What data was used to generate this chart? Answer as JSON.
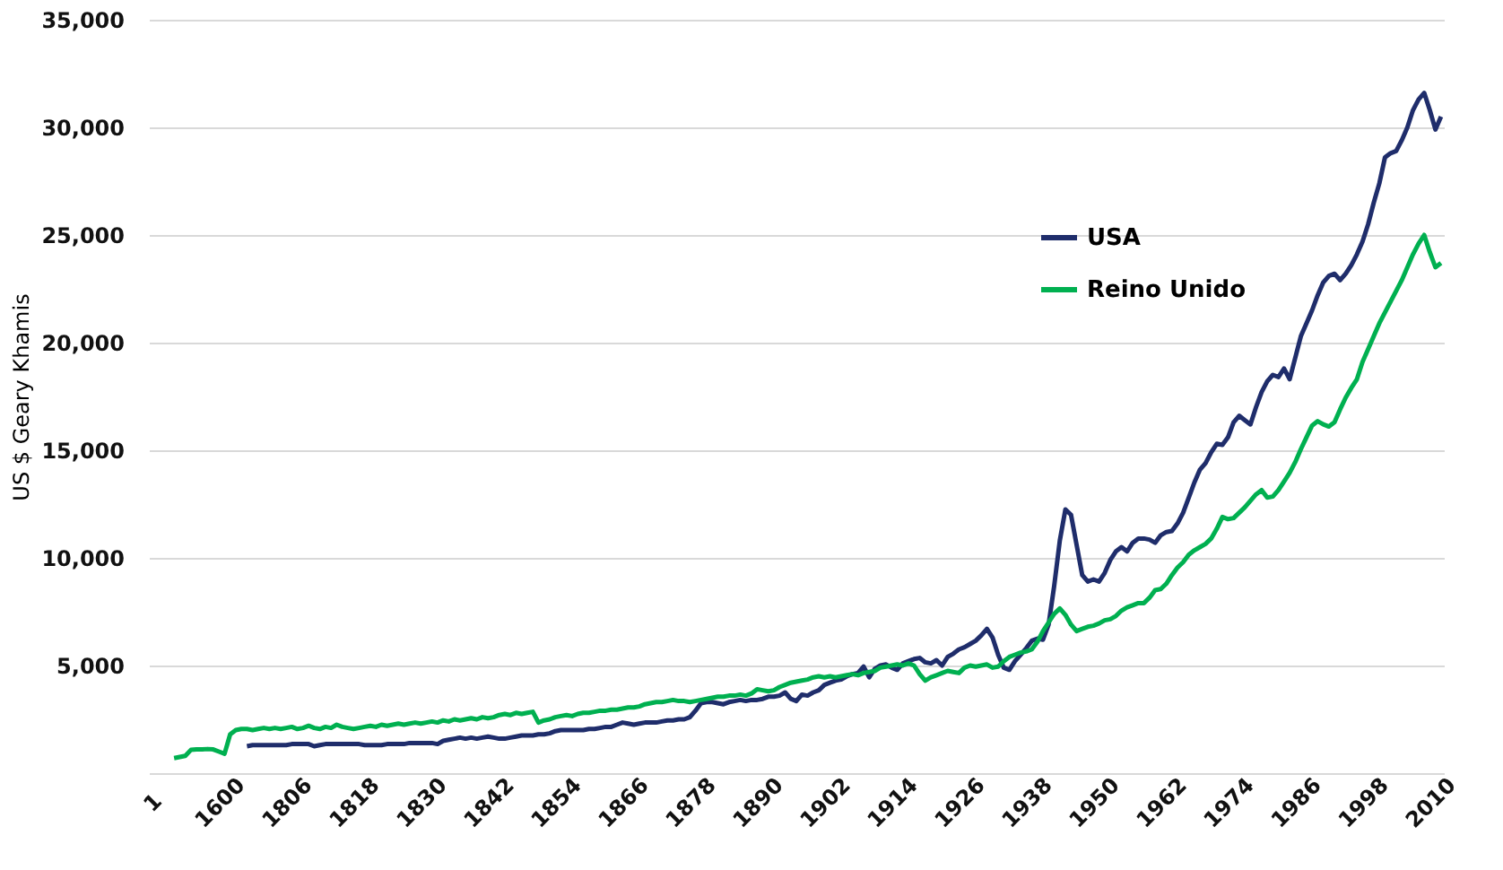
{
  "chart_data": {
    "type": "line",
    "ylabel": "US $ Geary Khamis",
    "categories": [
      "1",
      null,
      null,
      null,
      null,
      null,
      null,
      null,
      null,
      null,
      null,
      null,
      "1600",
      null,
      null,
      null,
      null,
      null,
      null,
      null,
      null,
      null,
      null,
      null,
      "1806",
      null,
      null,
      null,
      null,
      null,
      null,
      null,
      null,
      null,
      null,
      null,
      "1818",
      null,
      null,
      null,
      null,
      null,
      null,
      null,
      null,
      null,
      null,
      null,
      "1830",
      null,
      null,
      null,
      null,
      null,
      null,
      null,
      null,
      null,
      null,
      null,
      "1842",
      null,
      null,
      null,
      null,
      null,
      null,
      null,
      null,
      null,
      null,
      null,
      "1854",
      null,
      null,
      null,
      null,
      null,
      null,
      null,
      null,
      null,
      null,
      null,
      "1866",
      null,
      null,
      null,
      null,
      null,
      null,
      null,
      null,
      null,
      null,
      null,
      "1878",
      null,
      null,
      null,
      null,
      null,
      null,
      null,
      null,
      null,
      null,
      null,
      "1890",
      null,
      null,
      null,
      null,
      null,
      null,
      null,
      null,
      null,
      null,
      null,
      "1902",
      null,
      null,
      null,
      null,
      null,
      null,
      null,
      null,
      null,
      null,
      null,
      "1914",
      null,
      null,
      null,
      null,
      null,
      null,
      null,
      null,
      null,
      null,
      null,
      "1926",
      null,
      null,
      null,
      null,
      null,
      null,
      null,
      null,
      null,
      null,
      null,
      "1938",
      null,
      null,
      null,
      null,
      null,
      null,
      null,
      null,
      null,
      null,
      null,
      "1950",
      null,
      null,
      null,
      null,
      null,
      null,
      null,
      null,
      null,
      null,
      null,
      "1962",
      null,
      null,
      null,
      null,
      null,
      null,
      null,
      null,
      null,
      null,
      null,
      "1974",
      null,
      null,
      null,
      null,
      null,
      null,
      null,
      null,
      null,
      null,
      null,
      "1986",
      null,
      null,
      null,
      null,
      null,
      null,
      null,
      null,
      null,
      null,
      null,
      "1998",
      null,
      null,
      null,
      null,
      null,
      null,
      null,
      null,
      null,
      null,
      null,
      "2010",
      null,
      null
    ],
    "series": [
      {
        "name": "USA",
        "color": "#1f2d6b",
        "values": [
          null,
          null,
          null,
          null,
          null,
          null,
          null,
          null,
          null,
          null,
          null,
          null,
          null,
          null,
          null,
          null,
          null,
          1250,
          1300,
          1300,
          1300,
          1300,
          1300,
          1300,
          1300,
          1350,
          1350,
          1350,
          1350,
          1250,
          1300,
          1350,
          1350,
          1350,
          1350,
          1350,
          1350,
          1350,
          1300,
          1300,
          1300,
          1300,
          1350,
          1350,
          1350,
          1350,
          1400,
          1400,
          1400,
          1400,
          1400,
          1350,
          1500,
          1550,
          1600,
          1650,
          1600,
          1650,
          1600,
          1650,
          1700,
          1650,
          1600,
          1600,
          1650,
          1700,
          1750,
          1750,
          1750,
          1800,
          1800,
          1850,
          1950,
          2000,
          2000,
          2000,
          2000,
          2000,
          2050,
          2050,
          2100,
          2150,
          2150,
          2250,
          2350,
          2300,
          2250,
          2300,
          2350,
          2350,
          2350,
          2400,
          2450,
          2450,
          2500,
          2500,
          2600,
          2900,
          3250,
          3300,
          3300,
          3250,
          3200,
          3300,
          3350,
          3400,
          3350,
          3400,
          3400,
          3450,
          3550,
          3550,
          3600,
          3750,
          3450,
          3350,
          3650,
          3600,
          3750,
          3850,
          4100,
          4200,
          4300,
          4350,
          4500,
          4600,
          4650,
          4950,
          4450,
          4850,
          5000,
          5050,
          4900,
          4800,
          5100,
          5200,
          5300,
          5350,
          5150,
          5100,
          5250,
          5000,
          5400,
          5550,
          5750,
          5850,
          6000,
          6150,
          6400,
          6700,
          6300,
          5500,
          4900,
          4800,
          5200,
          5500,
          5800,
          6150,
          6250,
          6200,
          6900,
          8700,
          10800,
          12250,
          12000,
          10600,
          9200,
          8900,
          9000,
          8900,
          9300,
          9900,
          10300,
          10500,
          10300,
          10700,
          10900,
          10900,
          10850,
          10700,
          11050,
          11200,
          11250,
          11600,
          12100,
          12800,
          13500,
          14100,
          14400,
          14900,
          15300,
          15250,
          15600,
          16300,
          16600,
          16400,
          16200,
          17000,
          17700,
          18200,
          18500,
          18400,
          18800,
          18300,
          19300,
          20300,
          20900,
          21500,
          22200,
          22800,
          23100,
          23200,
          22900,
          23200,
          23600,
          24100,
          24700,
          25500,
          26500,
          27400,
          28600,
          28800,
          28900,
          29400,
          30000,
          30800,
          31300,
          31600,
          30800,
          29900,
          30500
        ]
      },
      {
        "name": "Reino Unido",
        "color": "#00b050",
        "values": [
          null,
          null,
          null,
          null,
          700,
          750,
          800,
          1080,
          1100,
          1100,
          1120,
          1100,
          1000,
          900,
          1800,
          2000,
          2050,
          2050,
          2000,
          2050,
          2100,
          2050,
          2100,
          2050,
          2100,
          2150,
          2050,
          2100,
          2200,
          2100,
          2050,
          2150,
          2100,
          2250,
          2150,
          2100,
          2050,
          2100,
          2150,
          2200,
          2150,
          2250,
          2200,
          2250,
          2300,
          2250,
          2300,
          2350,
          2300,
          2350,
          2400,
          2350,
          2450,
          2400,
          2500,
          2450,
          2500,
          2550,
          2500,
          2600,
          2550,
          2600,
          2700,
          2750,
          2700,
          2800,
          2750,
          2800,
          2850,
          2350,
          2450,
          2500,
          2600,
          2650,
          2700,
          2650,
          2750,
          2800,
          2800,
          2850,
          2900,
          2900,
          2950,
          2950,
          3000,
          3050,
          3050,
          3100,
          3200,
          3250,
          3300,
          3300,
          3350,
          3400,
          3350,
          3350,
          3300,
          3350,
          3400,
          3450,
          3500,
          3550,
          3550,
          3600,
          3600,
          3650,
          3600,
          3700,
          3900,
          3850,
          3800,
          3850,
          4000,
          4100,
          4200,
          4250,
          4300,
          4350,
          4450,
          4500,
          4450,
          4500,
          4450,
          4500,
          4550,
          4600,
          4550,
          4650,
          4700,
          4750,
          4900,
          4950,
          5000,
          5050,
          5000,
          5100,
          5000,
          4600,
          4300,
          4450,
          4550,
          4650,
          4750,
          4700,
          4650,
          4900,
          5000,
          4950,
          5000,
          5050,
          4900,
          4950,
          5200,
          5400,
          5500,
          5600,
          5650,
          5750,
          6100,
          6600,
          7000,
          7400,
          7650,
          7350,
          6900,
          6600,
          6700,
          6800,
          6850,
          6950,
          7100,
          7150,
          7300,
          7550,
          7700,
          7800,
          7900,
          7900,
          8150,
          8500,
          8550,
          8800,
          9200,
          9550,
          9800,
          10150,
          10350,
          10500,
          10650,
          10900,
          11350,
          11900,
          11800,
          11850,
          12100,
          12350,
          12650,
          12950,
          13150,
          12800,
          12850,
          13150,
          13550,
          13950,
          14450,
          15050,
          15600,
          16150,
          16350,
          16200,
          16100,
          16300,
          16900,
          17450,
          17900,
          18300,
          19100,
          19700,
          20300,
          20900,
          21400,
          21900,
          22400,
          22900,
          23500,
          24100,
          24600,
          25000,
          24200,
          23500,
          23700
        ]
      }
    ],
    "ylim": [
      0,
      35000
    ],
    "yticks": [
      {
        "value": 0,
        "label": null
      },
      {
        "value": 5000,
        "label": "5,000"
      },
      {
        "value": 10000,
        "label": "10,000"
      },
      {
        "value": 15000,
        "label": "15,000"
      },
      {
        "value": 20000,
        "label": "20,000"
      },
      {
        "value": 25000,
        "label": "25,000"
      },
      {
        "value": 30000,
        "label": "30,000"
      },
      {
        "value": 35000,
        "label": "35,000"
      }
    ],
    "grid": "y",
    "legend": "top right",
    "line_style": "solid"
  }
}
